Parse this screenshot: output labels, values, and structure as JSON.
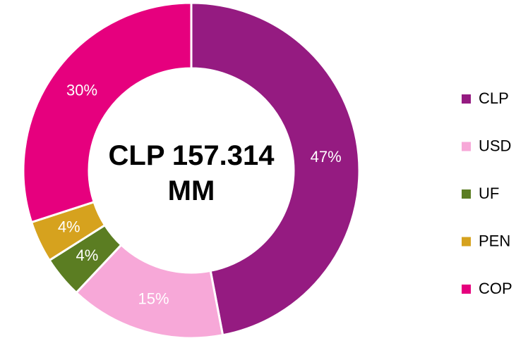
{
  "chart_data": {
    "type": "donut",
    "center_label": "CLP 157.314 MM",
    "categories": [
      "CLP",
      "USD",
      "UF",
      "PEN",
      "COP"
    ],
    "values": [
      47,
      15,
      4,
      4,
      30
    ],
    "value_labels": [
      "47%",
      "15%",
      "4%",
      "4%",
      "30%"
    ],
    "colors": [
      "#951b81",
      "#f7a8d8",
      "#5b7d22",
      "#d6a21e",
      "#e6007e"
    ],
    "legend": "right"
  }
}
